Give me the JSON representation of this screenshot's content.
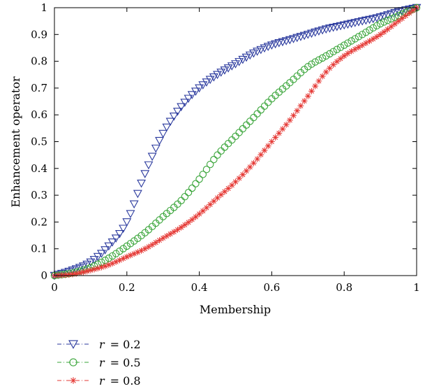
{
  "chart_data": {
    "type": "scatter",
    "xlabel": "Membership",
    "ylabel": "Enhancement operator",
    "xlim": [
      0,
      1
    ],
    "ylim": [
      0,
      1
    ],
    "x_ticks": [
      "0",
      "0.2",
      "0.4",
      "0.6",
      "0.8",
      "1"
    ],
    "y_ticks": [
      "0",
      "0.1",
      "0.2",
      "0.3",
      "0.4",
      "0.5",
      "0.6",
      "0.7",
      "0.8",
      "0.9",
      "1"
    ],
    "grid": false,
    "legend_position": "below-left",
    "series": [
      {
        "name": "r = 0.2",
        "legend_var": "r",
        "legend_value": "= 0.2",
        "color": "#2b3a9e",
        "marker": "triangle-down",
        "x": [
          0,
          0.05,
          0.1,
          0.15,
          0.2,
          0.25,
          0.3,
          0.35,
          0.4,
          0.45,
          0.5,
          0.55,
          0.6,
          0.65,
          0.7,
          0.75,
          0.8,
          0.85,
          0.9,
          0.95,
          1
        ],
        "y": [
          0,
          0.02,
          0.05,
          0.11,
          0.2,
          0.38,
          0.53,
          0.63,
          0.7,
          0.75,
          0.79,
          0.83,
          0.86,
          0.88,
          0.9,
          0.92,
          0.935,
          0.95,
          0.965,
          0.985,
          1
        ]
      },
      {
        "name": "r = 0.5",
        "legend_var": "r",
        "legend_value": "= 0.5",
        "color": "#3aa53a",
        "marker": "circle",
        "x": [
          0,
          0.05,
          0.1,
          0.15,
          0.2,
          0.25,
          0.3,
          0.35,
          0.4,
          0.45,
          0.5,
          0.55,
          0.6,
          0.65,
          0.7,
          0.75,
          0.8,
          0.85,
          0.9,
          0.95,
          1
        ],
        "y": [
          0,
          0.01,
          0.03,
          0.065,
          0.11,
          0.16,
          0.22,
          0.28,
          0.36,
          0.45,
          0.52,
          0.59,
          0.66,
          0.72,
          0.78,
          0.82,
          0.86,
          0.9,
          0.94,
          0.97,
          1
        ]
      },
      {
        "name": "r = 0.8",
        "legend_var": "r",
        "legend_value": "= 0.8",
        "color": "#e53935",
        "marker": "asterisk",
        "x": [
          0,
          0.05,
          0.1,
          0.15,
          0.2,
          0.25,
          0.3,
          0.35,
          0.4,
          0.45,
          0.5,
          0.55,
          0.6,
          0.65,
          0.7,
          0.75,
          0.8,
          0.85,
          0.9,
          0.95,
          1
        ],
        "y": [
          0,
          0.005,
          0.02,
          0.04,
          0.07,
          0.1,
          0.14,
          0.18,
          0.23,
          0.29,
          0.35,
          0.42,
          0.5,
          0.58,
          0.67,
          0.76,
          0.82,
          0.86,
          0.9,
          0.95,
          1
        ]
      }
    ]
  }
}
